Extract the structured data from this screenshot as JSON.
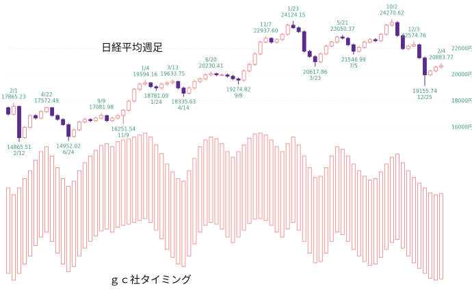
{
  "chart_data": [
    {
      "type": "candlestick",
      "title": "日経平均週足",
      "categories": [
        null,
        "2/1",
        "2/12",
        null,
        null,
        null,
        null,
        "4/22",
        null,
        null,
        null,
        "6/24",
        null,
        null,
        null,
        null,
        null,
        "9/9",
        null,
        null,
        null,
        "11/9",
        null,
        null,
        null,
        "1/4",
        null,
        "1/24",
        null,
        null,
        "3/13",
        null,
        "4/14",
        null,
        null,
        null,
        null,
        "6/20",
        null,
        null,
        null,
        null,
        "9/8",
        null,
        null,
        null,
        null,
        "11/7",
        null,
        null,
        null,
        null,
        "1/23",
        null,
        null,
        null,
        "3/23",
        null,
        null,
        null,
        null,
        "5/21",
        null,
        "7/5",
        null,
        null,
        null,
        null,
        null,
        null,
        "10/2",
        null,
        null,
        null,
        "12/3",
        null,
        "12/25",
        null,
        null,
        "2/4"
      ],
      "open": [
        17500,
        17000,
        17600,
        15200,
        16000,
        16900,
        16700,
        17200,
        17500,
        16900,
        16600,
        16200,
        15300,
        15800,
        16400,
        16600,
        16500,
        16700,
        16900,
        16500,
        16700,
        16900,
        17300,
        18000,
        18900,
        19300,
        19400,
        19100,
        19000,
        19300,
        19400,
        19500,
        19000,
        18600,
        19000,
        19500,
        19700,
        20000,
        20100,
        20000,
        20000,
        19900,
        19700,
        19600,
        20300,
        20800,
        21600,
        22500,
        22800,
        22500,
        22700,
        23100,
        23800,
        23600,
        23300,
        21800,
        21400,
        21000,
        21600,
        22200,
        22500,
        22900,
        22800,
        22300,
        21800,
        22100,
        22500,
        22700,
        22600,
        23100,
        23800,
        24000,
        23000,
        22000,
        22200,
        22300,
        21300,
        20000,
        20300,
        20600
      ],
      "high": [
        17600,
        17865.23,
        17650,
        16100,
        17000,
        17000,
        17300,
        17572.49,
        17550,
        17000,
        16700,
        16300,
        15900,
        16500,
        16700,
        16700,
        16800,
        17081.98,
        16950,
        16800,
        17000,
        17400,
        18100,
        19000,
        19400,
        19594.16,
        19450,
        19200,
        19400,
        19500,
        19633.75,
        19550,
        19100,
        19100,
        19600,
        19800,
        20100,
        20230.41,
        20150,
        20100,
        20100,
        20000,
        19800,
        20400,
        20900,
        21700,
        22600,
        22937.6,
        22850,
        22800,
        23200,
        23900,
        24124.15,
        23700,
        23400,
        21900,
        21500,
        21700,
        22300,
        22600,
        23000,
        23050.37,
        22900,
        22400,
        22200,
        22600,
        22800,
        22800,
        23200,
        23900,
        24270.62,
        24100,
        23100,
        22300,
        22574.76,
        22400,
        21400,
        20400,
        20700,
        20883.77
      ],
      "low": [
        16900,
        16900,
        14865.51,
        15100,
        15900,
        16600,
        16600,
        17100,
        16800,
        16500,
        16100,
        14952.02,
        15200,
        15700,
        16300,
        16400,
        16400,
        16600,
        16400,
        16400,
        16600,
        16251.54,
        17200,
        17900,
        18800,
        19200,
        19000,
        18781.09,
        18900,
        19200,
        19300,
        18900,
        18335.63,
        18500,
        18900,
        19400,
        19600,
        19900,
        19900,
        19900,
        19800,
        19600,
        19274.82,
        19500,
        20200,
        20700,
        21500,
        22400,
        22400,
        22400,
        22600,
        23000,
        23500,
        23200,
        21700,
        21300,
        20617.86,
        20900,
        21500,
        22100,
        22400,
        22700,
        22200,
        21546.99,
        21700,
        22000,
        22400,
        22500,
        22500,
        23000,
        23700,
        22900,
        21900,
        21900,
        22100,
        21200,
        19155.74,
        19900,
        20200,
        20500
      ],
      "close": [
        17000,
        17600,
        15200,
        16000,
        16900,
        16700,
        17200,
        17500,
        16900,
        16600,
        16200,
        15300,
        15800,
        16400,
        16600,
        16500,
        16700,
        16900,
        16500,
        16700,
        16900,
        17300,
        18000,
        18900,
        19300,
        19400,
        19100,
        19000,
        19300,
        19400,
        19500,
        19000,
        18600,
        19000,
        19500,
        19700,
        20000,
        20100,
        20000,
        20000,
        19900,
        19700,
        19600,
        20300,
        20800,
        21600,
        22500,
        22800,
        22500,
        22700,
        23100,
        23800,
        23600,
        23300,
        21800,
        21400,
        21000,
        21600,
        22200,
        22500,
        22900,
        22800,
        22300,
        21800,
        22100,
        22500,
        22700,
        22600,
        23100,
        23800,
        24000,
        23000,
        22000,
        22200,
        22300,
        21300,
        20000,
        20300,
        20600,
        20700
      ],
      "price_labels": [
        null,
        "17865.23",
        "14865.51",
        null,
        null,
        null,
        null,
        "17572.49",
        null,
        null,
        null,
        "14952.02",
        null,
        null,
        null,
        null,
        null,
        "17081.98",
        null,
        null,
        null,
        "16251.54",
        null,
        null,
        null,
        "19594.16",
        null,
        "18781.09",
        null,
        null,
        "19633.75",
        null,
        "18335.63",
        null,
        null,
        null,
        null,
        "20230.41",
        null,
        null,
        null,
        null,
        "19274.82",
        null,
        null,
        null,
        null,
        "22937.60",
        null,
        null,
        null,
        null,
        "24124.15",
        null,
        null,
        null,
        "20617.86",
        null,
        null,
        null,
        null,
        "23050.37",
        null,
        "21546.99",
        null,
        null,
        null,
        null,
        null,
        null,
        "24270.62",
        null,
        null,
        null,
        "22574.76",
        null,
        "19155.74",
        null,
        null,
        "20883.77"
      ],
      "ylim": [
        13200,
        25300
      ],
      "yticks": [
        {
          "value": 16000,
          "label": "16000円"
        },
        {
          "value": 18000,
          "label": "18000円"
        },
        {
          "value": 20000,
          "label": "20000円"
        },
        {
          "value": 22000,
          "label": "22000円"
        }
      ],
      "grid": true,
      "up_color": "#e87a7a",
      "down_color": "#5b2a8c",
      "label_color": "#3f9a72"
    },
    {
      "type": "range_bar",
      "title": "ｇｃ社タイミング",
      "values": [
        11,
        0,
        11,
        26,
        39,
        56,
        70,
        78,
        63,
        44,
        26,
        14,
        22,
        39,
        52,
        63,
        72,
        80,
        83,
        78,
        86,
        89,
        91,
        94,
        97,
        100,
        94,
        81,
        67,
        50,
        37,
        26,
        22,
        39,
        59,
        78,
        89,
        94,
        91,
        83,
        70,
        61,
        70,
        81,
        92,
        99,
        100,
        97,
        89,
        78,
        70,
        83,
        94,
        81,
        63,
        44,
        28,
        30,
        44,
        63,
        78,
        74,
        63,
        50,
        39,
        30,
        24,
        26,
        37,
        50,
        61,
        66,
        52,
        39,
        28,
        19,
        11,
        3,
        0,
        2
      ],
      "ylim": [
        0,
        100
      ],
      "color": "#f07a7a"
    }
  ]
}
